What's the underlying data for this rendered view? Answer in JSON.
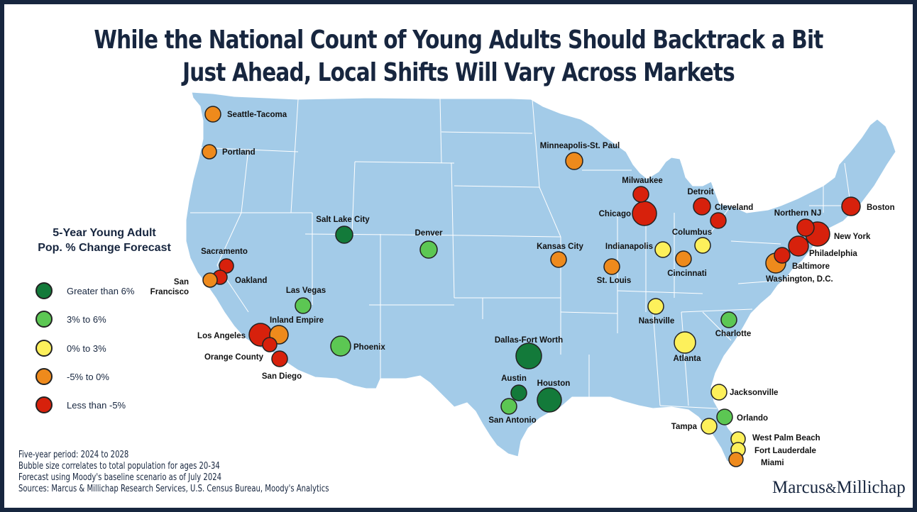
{
  "title": {
    "line1": "While the National Count of Young Adults Should Backtrack a Bit",
    "line2": "Just Ahead, Local Shifts Will Vary Across Markets"
  },
  "legend": {
    "title_line1": "5-Year Young Adult",
    "title_line2": "Pop. % Change Forecast",
    "items": [
      {
        "label": "Greater than 6%",
        "color": "#137a3a"
      },
      {
        "label": "3% to 6%",
        "color": "#5cc753"
      },
      {
        "label": "0% to 3%",
        "color": "#fdf05b"
      },
      {
        "label": "-5% to 0%",
        "color": "#ee8a1c"
      },
      {
        "label": "Less than -5%",
        "color": "#d7210c"
      }
    ]
  },
  "map": {
    "land_color": "#a3cbe8",
    "border_color": "#ffffff"
  },
  "cities": [
    {
      "name": "Seattle-Tacoma",
      "category": "-5% to 0%"
    },
    {
      "name": "Portland",
      "category": "-5% to 0%"
    },
    {
      "name": "Sacramento",
      "category": "Less than -5%"
    },
    {
      "name": "Oakland",
      "category": "Less than -5%"
    },
    {
      "name": "San Francisco",
      "category": "-5% to 0%"
    },
    {
      "name": "Las Vegas",
      "category": "3% to 6%"
    },
    {
      "name": "Inland Empire",
      "category": "-5% to 0%"
    },
    {
      "name": "Los Angeles",
      "category": "Less than -5%"
    },
    {
      "name": "Orange County",
      "category": "Less than -5%"
    },
    {
      "name": "San Diego",
      "category": "Less than -5%"
    },
    {
      "name": "Phoenix",
      "category": "3% to 6%"
    },
    {
      "name": "Salt Lake City",
      "category": "Greater than 6%"
    },
    {
      "name": "Denver",
      "category": "3% to 6%"
    },
    {
      "name": "Minneapolis-St. Paul",
      "category": "-5% to 0%"
    },
    {
      "name": "Kansas City",
      "category": "-5% to 0%"
    },
    {
      "name": "St. Louis",
      "category": "-5% to 0%"
    },
    {
      "name": "Dallas-Fort Worth",
      "category": "Greater than 6%"
    },
    {
      "name": "Austin",
      "category": "Greater than 6%"
    },
    {
      "name": "San Antonio",
      "category": "3% to 6%"
    },
    {
      "name": "Houston",
      "category": "Greater than 6%"
    },
    {
      "name": "Milwaukee",
      "category": "Less than -5%"
    },
    {
      "name": "Chicago",
      "category": "Less than -5%"
    },
    {
      "name": "Indianapolis",
      "category": "0% to 3%"
    },
    {
      "name": "Detroit",
      "category": "Less than -5%"
    },
    {
      "name": "Cleveland",
      "category": "Less than -5%"
    },
    {
      "name": "Columbus",
      "category": "0% to 3%"
    },
    {
      "name": "Cincinnati",
      "category": "-5% to 0%"
    },
    {
      "name": "Nashville",
      "category": "0% to 3%"
    },
    {
      "name": "Atlanta",
      "category": "0% to 3%"
    },
    {
      "name": "Charlotte",
      "category": "3% to 6%"
    },
    {
      "name": "Jacksonville",
      "category": "0% to 3%"
    },
    {
      "name": "Orlando",
      "category": "3% to 6%"
    },
    {
      "name": "Tampa",
      "category": "0% to 3%"
    },
    {
      "name": "West Palm Beach",
      "category": "0% to 3%"
    },
    {
      "name": "Fort Lauderdale",
      "category": "0% to 3%"
    },
    {
      "name": "Miami",
      "category": "-5% to 0%"
    },
    {
      "name": "Boston",
      "category": "Less than -5%"
    },
    {
      "name": "Northern NJ",
      "category": "Less than -5%"
    },
    {
      "name": "New York",
      "category": "Less than -5%"
    },
    {
      "name": "Philadelphia",
      "category": "Less than -5%"
    },
    {
      "name": "Baltimore",
      "category": "Less than -5%"
    },
    {
      "name": "Washington, D.C.",
      "category": "-5% to 0%"
    }
  ],
  "notes": [
    "Five-year period: 2024 to 2028",
    "Bubble size correlates to total population for ages 20-34",
    "Forecast using Moody's baseline scenario as of July 2024",
    "Sources: Marcus & Millichap Research Services, U.S. Census Bureau, Moody's Analytics"
  ],
  "logo": {
    "part1": "Marcus",
    "amp": "&",
    "part2": "Millichap"
  }
}
